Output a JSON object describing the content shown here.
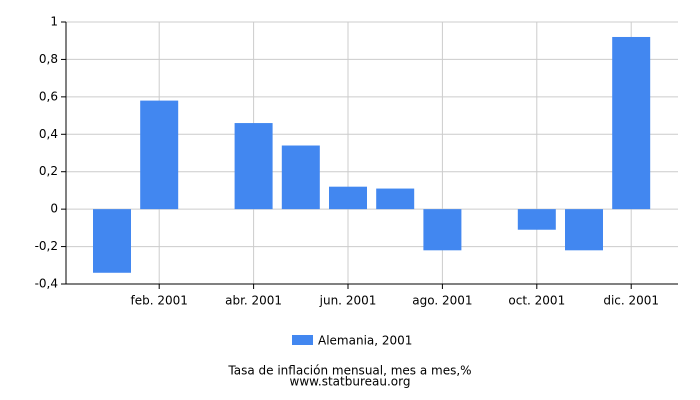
{
  "chart_data": {
    "type": "bar",
    "title": "Tasa de inflación mensual, mes a mes,%",
    "source": "www.statbureau.org",
    "categories": [
      null,
      "feb. 2001",
      null,
      "abr. 2001",
      null,
      "jun. 2001",
      null,
      "ago. 2001",
      null,
      "oct. 2001",
      null,
      "dic. 2001"
    ],
    "series": [
      {
        "name": "Alemania, 2001",
        "color": "#4287f0",
        "values": [
          -0.34,
          0.58,
          0,
          0.46,
          0.34,
          0.12,
          0.11,
          -0.22,
          0,
          -0.11,
          -0.22,
          0.92
        ]
      }
    ],
    "ylim": [
      -0.4,
      1
    ],
    "yticks": [
      {
        "value": -0.4,
        "label": "-0,4"
      },
      {
        "value": -0.2,
        "label": "-0,2"
      },
      0,
      {
        "value": 0.2,
        "label": "0,2"
      },
      {
        "value": 0.4,
        "label": "0,4"
      },
      {
        "value": 0.6,
        "label": "0,6"
      },
      {
        "value": 0.8,
        "label": "0,8"
      },
      1
    ],
    "grid": true
  }
}
